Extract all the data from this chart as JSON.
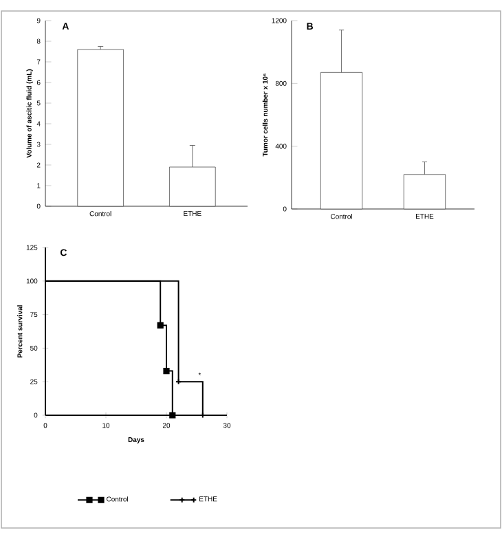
{
  "chart_data": [
    {
      "type": "bar",
      "title": "A",
      "ylabel": "Volume of ascitic fluid (mL)",
      "categories": [
        "Control",
        "ETHE"
      ],
      "values": [
        7.6,
        1.9
      ],
      "errors": [
        [
          7.6,
          7.75
        ],
        [
          1.9,
          2.95
        ]
      ],
      "color": "#ffffff",
      "ylim": [
        0,
        9
      ],
      "yticks": [
        0,
        1,
        2,
        3,
        4,
        5,
        6,
        7,
        8,
        9
      ]
    },
    {
      "type": "bar",
      "title": "B",
      "ylabel": "Tumor cells number x 10⁶",
      "categories": [
        "Control",
        "ETHE"
      ],
      "values": [
        870,
        220
      ],
      "errors": [
        [
          870,
          1140
        ],
        [
          220,
          300
        ]
      ],
      "color": "#ffffff",
      "ylim": [
        0,
        1200
      ],
      "yticks": [
        0,
        400,
        800,
        1200
      ]
    },
    {
      "type": "step",
      "title": "C",
      "xlabel": "Days",
      "ylabel": "Percent survival",
      "xlim": [
        0,
        30
      ],
      "xticks": [
        0,
        10,
        20,
        30
      ],
      "ylim": [
        0,
        125
      ],
      "yticks": [
        0,
        25,
        50,
        75,
        100,
        125
      ],
      "legend": "bottom",
      "series": [
        {
          "name": "Control",
          "color": "#000000",
          "marker": "square",
          "x": [
            0,
            19,
            20,
            21
          ],
          "values": [
            100,
            67,
            33,
            0
          ]
        },
        {
          "name": "ETHE",
          "color": "#000000",
          "marker": "cross",
          "x": [
            0,
            22,
            26
          ],
          "values": [
            100,
            25,
            0
          ]
        }
      ],
      "annotations": [
        {
          "text": "*",
          "x": 25.5,
          "y": 30
        }
      ]
    }
  ]
}
